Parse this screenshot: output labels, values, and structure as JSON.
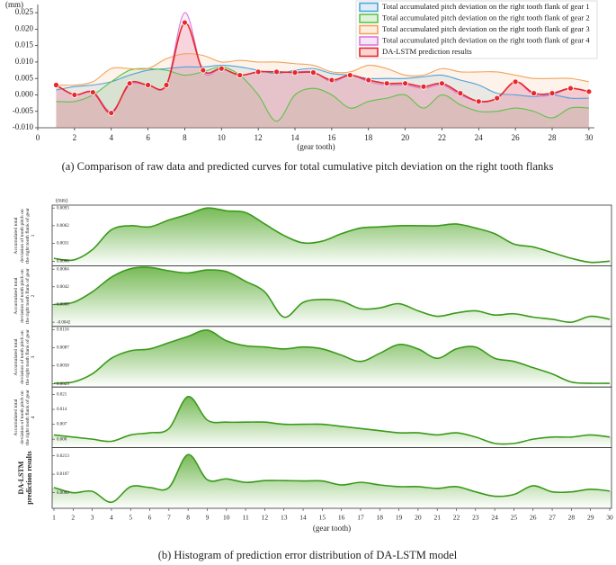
{
  "chart_data": [
    {
      "type": "line",
      "title": "(a) Comparison of raw data and predicted curves for total cumulative pitch deviation on the right tooth flanks",
      "xlabel": "(gear tooth)",
      "ylabel": "(mm)",
      "x": [
        1,
        2,
        3,
        4,
        5,
        6,
        7,
        8,
        9,
        10,
        11,
        12,
        13,
        14,
        15,
        16,
        17,
        18,
        19,
        20,
        21,
        22,
        23,
        24,
        25,
        26,
        27,
        28,
        29,
        30
      ],
      "xlim": [
        0,
        30.3
      ],
      "xticks": [
        0,
        2,
        4,
        6,
        8,
        10,
        12,
        14,
        16,
        18,
        20,
        22,
        24,
        26,
        28,
        30
      ],
      "ylim": [
        -0.01,
        0.0275
      ],
      "yticks": [
        {
          "value": -0.01,
          "label": "-0.010"
        },
        -0.005,
        {
          "value": 0,
          "label": "0.000"
        },
        0.005,
        {
          "value": 0.01,
          "label": "0.010"
        },
        0.015,
        {
          "value": 0.02,
          "label": "0.020"
        },
        0.025
      ],
      "legend": "top-right",
      "series": [
        {
          "name": "Total accumulated pitch deviation on the right tooth flank of gear 1",
          "color": "#4fa3d9",
          "values": [
            0.0015,
            0.0025,
            0.003,
            0.004,
            0.006,
            0.0075,
            0.008,
            0.0085,
            0.0085,
            0.009,
            0.0085,
            0.0075,
            0.0065,
            0.0075,
            0.008,
            0.0065,
            0.006,
            0.005,
            0.005,
            0.005,
            0.0055,
            0.006,
            0.0045,
            0.003,
            0.0005,
            0.0,
            -0.0005,
            0.0,
            -0.001,
            -0.001
          ]
        },
        {
          "name": "Total accumulated pitch deviation on the right tooth flank of gear 2",
          "color": "#5fc24a",
          "values": [
            -0.002,
            -0.002,
            0.0,
            0.004,
            0.0075,
            0.008,
            0.0075,
            0.006,
            0.007,
            0.0085,
            0.006,
            0.0,
            -0.008,
            0.0,
            0.002,
            0.0,
            -0.004,
            -0.002,
            -0.001,
            0.0,
            -0.004,
            0.0,
            -0.003,
            -0.005,
            -0.005,
            -0.004,
            -0.005,
            -0.007,
            -0.004,
            -0.004
          ]
        },
        {
          "name": "Total accumulated pitch deviation on the right tooth flank of gear 3",
          "color": "#f2a35c",
          "values": [
            0.003,
            0.003,
            0.004,
            0.008,
            0.008,
            0.008,
            0.011,
            0.0125,
            0.012,
            0.01,
            0.0105,
            0.01,
            0.01,
            0.0095,
            0.009,
            0.007,
            0.007,
            0.009,
            0.008,
            0.006,
            0.006,
            0.008,
            0.007,
            0.007,
            0.007,
            0.006,
            0.005,
            0.005,
            0.005,
            0.004
          ]
        },
        {
          "name": "Total accumulated pitch deviation on the right tooth flank of gear 4",
          "color": "#d77ad7",
          "values": [
            0.003,
            0.0,
            0.001,
            -0.005,
            0.003,
            0.003,
            0.003,
            0.025,
            0.007,
            0.008,
            0.006,
            0.007,
            0.007,
            0.007,
            0.007,
            0.004,
            0.006,
            0.004,
            0.003,
            0.003,
            0.002,
            0.003,
            0.0,
            -0.002,
            -0.001,
            0.004,
            0.0,
            0.0,
            0.002,
            0.001
          ]
        },
        {
          "name": "DA-LSTM prediction results",
          "color": "#e8272a",
          "markers": true,
          "values": [
            0.003,
            0.0,
            0.0008,
            -0.0055,
            0.0035,
            0.003,
            0.003,
            0.022,
            0.0075,
            0.008,
            0.006,
            0.007,
            0.007,
            0.0068,
            0.0068,
            0.0045,
            0.006,
            0.0045,
            0.0035,
            0.0035,
            0.0025,
            0.0035,
            0.0005,
            -0.002,
            -0.001,
            0.004,
            0.0005,
            0.0005,
            0.002,
            0.001
          ]
        }
      ]
    },
    {
      "type": "area",
      "title": "(b) Histogram of prediction error distribution of DA-LSTM model",
      "xlabel": "(gear tooth)",
      "ylabel": "(mm)",
      "color": "#3a9a1a",
      "x": [
        1,
        2,
        3,
        4,
        5,
        6,
        7,
        8,
        9,
        10,
        11,
        12,
        13,
        14,
        15,
        16,
        17,
        18,
        19,
        20,
        21,
        22,
        23,
        24,
        25,
        26,
        27,
        28,
        29,
        30
      ],
      "xlim": [
        1,
        30
      ],
      "xticks": [
        1,
        2,
        3,
        4,
        5,
        6,
        7,
        8,
        9,
        10,
        11,
        12,
        13,
        14,
        15,
        16,
        17,
        18,
        19,
        20,
        21,
        22,
        23,
        24,
        25,
        26,
        27,
        28,
        29,
        30
      ],
      "panels": [
        {
          "ylabel": "Accumulated total deviation of tooth pitch on the right tooth flank of gear 1",
          "ylim": [
            -0.0008,
            0.0098
          ],
          "yticks": [
            {
              "value": 0,
              "label": "0.0000"
            },
            0.0031,
            0.0062,
            0.0093
          ],
          "values": [
            0.0005,
            0.0002,
            0.002,
            0.0055,
            0.0062,
            0.006,
            0.0072,
            0.0082,
            0.0093,
            0.0088,
            0.0085,
            0.0065,
            0.0045,
            0.0032,
            0.0035,
            0.0048,
            0.0058,
            0.006,
            0.0062,
            0.0062,
            0.0062,
            0.0065,
            0.0058,
            0.0048,
            0.003,
            0.0025,
            0.0015,
            0.0005,
            -0.0002,
            0.0
          ]
        },
        {
          "ylabel": "Accumulated total deviation of tooth pitch on the right tooth flank of gear 2",
          "ylim": [
            -0.0052,
            0.0092
          ],
          "yticks": [
            -0.0042,
            {
              "value": 0,
              "label": "0.0000"
            },
            0.0042,
            0.0084
          ],
          "values": [
            0.0,
            0.0005,
            0.003,
            0.0065,
            0.0085,
            0.0088,
            0.008,
            0.0075,
            0.0082,
            0.0078,
            0.0055,
            0.003,
            -0.003,
            0.0005,
            0.0012,
            0.0008,
            -0.001,
            -0.0008,
            0.0002,
            -0.0015,
            -0.0028,
            -0.002,
            -0.0015,
            -0.0025,
            -0.0022,
            -0.003,
            -0.0035,
            -0.0042,
            -0.0028,
            -0.0035
          ]
        },
        {
          "ylabel": "Accumulated total deviation of tooth pitch on the right tooth flank of gear 3",
          "ylim": [
            0.0024,
            0.0121
          ],
          "yticks": [
            0.0029,
            0.0058,
            0.0087,
            0.0116
          ],
          "values": [
            0.003,
            0.0032,
            0.0045,
            0.007,
            0.0082,
            0.0085,
            0.0095,
            0.0105,
            0.0115,
            0.0098,
            0.009,
            0.0088,
            0.0085,
            0.0088,
            0.0085,
            0.0075,
            0.0065,
            0.0078,
            0.0092,
            0.0085,
            0.007,
            0.0085,
            0.0088,
            0.007,
            0.0065,
            0.0055,
            0.0045,
            0.0032,
            0.003,
            0.003
          ]
        },
        {
          "ylabel": "Accumulated total deviation of tooth pitch on the right tooth flank of gear 4",
          "ylim": [
            -0.004,
            0.0245
          ],
          "yticks": [
            {
              "value": 0,
              "label": "0.000"
            },
            0.007,
            0.014,
            0.021
          ],
          "values": [
            0.002,
            0.001,
            0.0,
            -0.001,
            0.002,
            0.003,
            0.005,
            0.02,
            0.009,
            0.008,
            0.008,
            0.008,
            0.007,
            0.007,
            0.007,
            0.006,
            0.005,
            0.004,
            0.003,
            0.003,
            0.002,
            0.003,
            0.001,
            -0.002,
            -0.002,
            0.0,
            0.001,
            0.001,
            0.002,
            0.001
          ]
        },
        {
          "ylabel": "DA-LSTM prediction results",
          "ylim": [
            -0.009,
            0.026
          ],
          "yticks": [
            {
              "value": 0,
              "label": "0.0000"
            },
            0.0107,
            0.0213
          ],
          "values": [
            0.003,
            0.0,
            0.0008,
            -0.0055,
            0.0035,
            0.003,
            0.003,
            0.022,
            0.0075,
            0.008,
            0.006,
            0.007,
            0.007,
            0.0068,
            0.0068,
            0.0045,
            0.006,
            0.0045,
            0.0035,
            0.0035,
            0.0025,
            0.0035,
            0.0005,
            -0.002,
            -0.001,
            0.004,
            0.0005,
            0.0005,
            0.002,
            0.001
          ]
        }
      ]
    }
  ]
}
